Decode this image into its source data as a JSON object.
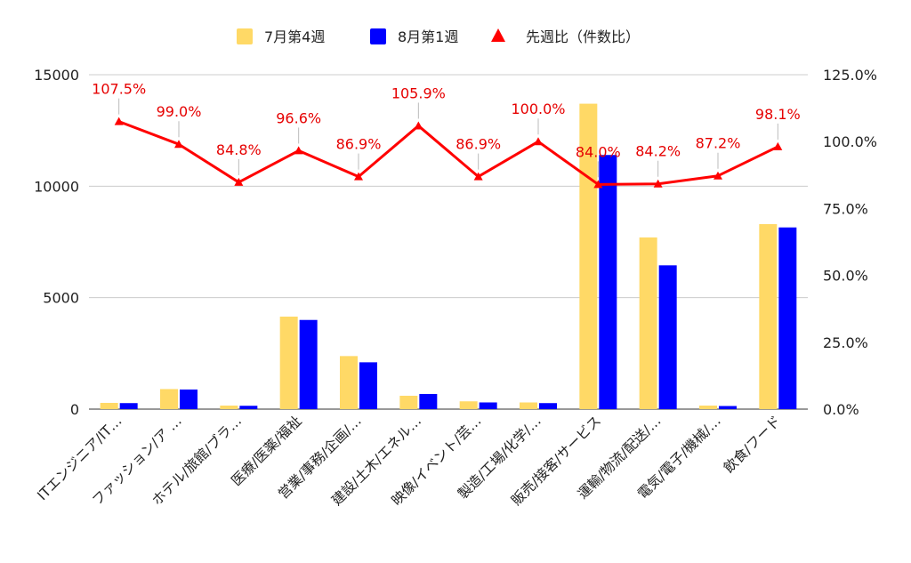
{
  "chart_data": {
    "type": "bar",
    "categories": [
      "ITエンジニア/IT…",
      "ファッション/ア …",
      "ホテル/旅館/ブラ…",
      "医療/医薬/福祉",
      "営業/事務/企画/…",
      "建設/土木/エネル…",
      "映像/イベント/芸…",
      "製造/工場/化学/…",
      "販売/接客/サービス",
      "運輸/物流/配送/…",
      "電気/電子/機械/…",
      "飲食/フード"
    ],
    "series": [
      {
        "name": "7月第4週",
        "type": "bar",
        "color": "#ffd966",
        "values": [
          280,
          900,
          160,
          4150,
          2380,
          600,
          350,
          300,
          13700,
          7700,
          160,
          8300
        ]
      },
      {
        "name": "8月第1週",
        "type": "bar",
        "color": "#0000ff",
        "values": [
          270,
          880,
          150,
          4000,
          2100,
          680,
          300,
          270,
          11400,
          6450,
          140,
          8150
        ]
      },
      {
        "name": "先週比（件数比）",
        "type": "line",
        "axis": "right",
        "color": "#ff0000",
        "values": [
          107.5,
          99.0,
          84.8,
          96.6,
          86.9,
          105.9,
          86.9,
          100.0,
          84.0,
          84.2,
          87.2,
          98.1
        ],
        "labels": [
          "107.5%",
          "99.0%",
          "84.8%",
          "96.6%",
          "86.9%",
          "105.9%",
          "86.9%",
          "100.0%",
          "84.0%",
          "84.2%",
          "87.2%",
          "98.1%"
        ]
      }
    ],
    "y_left": {
      "ticks": [
        "0",
        "5000",
        "10000",
        "15000"
      ],
      "range": [
        0,
        15000
      ]
    },
    "y_right": {
      "ticks": [
        "0.0%",
        "25.0%",
        "50.0%",
        "75.0%",
        "100.0%",
        "125.0%"
      ],
      "range": [
        0,
        125
      ]
    },
    "legend_position": "top-center",
    "grid": true
  }
}
